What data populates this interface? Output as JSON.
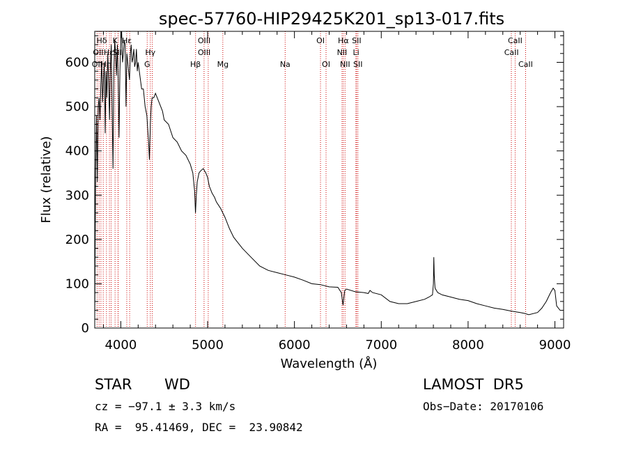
{
  "chart_data": {
    "type": "line",
    "title": "spec-57760-HIP29425K201_sp13-017.fits",
    "xlabel": "Wavelength (Å)",
    "ylabel": "Flux (relative)",
    "xlim": [
      3700,
      9100
    ],
    "ylim": [
      0,
      670
    ],
    "xticks": [
      4000,
      5000,
      6000,
      7000,
      8000,
      9000
    ],
    "yticks": [
      0,
      100,
      200,
      300,
      400,
      500,
      600
    ],
    "grid": false,
    "line_color": "#000000",
    "marker_color": "#cc0000",
    "series": [
      {
        "x": [
          3700,
          3710,
          3720,
          3730,
          3740,
          3750,
          3760,
          3770,
          3780,
          3790,
          3800,
          3810,
          3820,
          3830,
          3840,
          3850,
          3860,
          3870,
          3880,
          3890,
          3900,
          3910,
          3920,
          3930,
          3940,
          3950,
          3960,
          3970,
          3980,
          3990,
          4000,
          4010,
          4020,
          4030,
          4040,
          4050,
          4060,
          4070,
          4080,
          4090,
          4100,
          4110,
          4120,
          4130,
          4140,
          4150,
          4160,
          4170,
          4180,
          4190,
          4200,
          4220,
          4240,
          4260,
          4280,
          4300,
          4320,
          4330,
          4340,
          4350,
          4360,
          4380,
          4400,
          4420,
          4440,
          4460,
          4480,
          4500,
          4550,
          4600,
          4650,
          4700,
          4750,
          4800,
          4830,
          4850,
          4860,
          4870,
          4880,
          4900,
          4920,
          4950,
          4980,
          5000,
          5020,
          5050,
          5080,
          5100,
          5150,
          5200,
          5250,
          5300,
          5400,
          5500,
          5600,
          5700,
          5800,
          5900,
          6000,
          6100,
          6200,
          6300,
          6400,
          6500,
          6540,
          6560,
          6570,
          6580,
          6600,
          6700,
          6800,
          6850,
          6870,
          6900,
          7000,
          7100,
          7200,
          7300,
          7400,
          7500,
          7550,
          7590,
          7600,
          7605,
          7610,
          7620,
          7650,
          7700,
          7800,
          7900,
          8000,
          8100,
          8200,
          8300,
          8400,
          8500,
          8600,
          8650,
          8700,
          8800,
          8850,
          8900,
          8950,
          8980,
          9000,
          9020,
          9040,
          9060
        ],
        "y": [
          15,
          350,
          480,
          330,
          500,
          520,
          470,
          550,
          600,
          510,
          560,
          600,
          440,
          580,
          520,
          620,
          560,
          470,
          590,
          640,
          500,
          360,
          580,
          650,
          620,
          570,
          640,
          560,
          430,
          580,
          650,
          670,
          600,
          620,
          650,
          640,
          500,
          620,
          600,
          580,
          560,
          620,
          640,
          600,
          610,
          630,
          590,
          600,
          630,
          580,
          600,
          570,
          540,
          540,
          500,
          480,
          420,
          380,
          460,
          500,
          520,
          520,
          530,
          520,
          510,
          500,
          490,
          470,
          460,
          430,
          420,
          400,
          390,
          370,
          350,
          310,
          260,
          300,
          330,
          350,
          355,
          360,
          350,
          340,
          320,
          305,
          295,
          285,
          270,
          250,
          225,
          205,
          180,
          160,
          140,
          130,
          125,
          120,
          115,
          108,
          100,
          98,
          93,
          92,
          80,
          52,
          70,
          85,
          88,
          82,
          80,
          78,
          85,
          80,
          75,
          60,
          55,
          55,
          60,
          65,
          70,
          75,
          100,
          160,
          120,
          90,
          80,
          75,
          70,
          65,
          62,
          55,
          50,
          45,
          42,
          38,
          35,
          33,
          30,
          35,
          45,
          60,
          80,
          90,
          85,
          50,
          45,
          40
        ]
      }
    ],
    "line_markers": [
      {
        "wl": 3727,
        "labels": [
          "OII"
        ]
      },
      {
        "wl": 3750,
        "labels": [
          "Hθ"
        ]
      },
      {
        "wl": 3771,
        "labels": [
          "Hη"
        ]
      },
      {
        "wl": 3798,
        "labels": [
          "Hθ"
        ]
      },
      {
        "wl": 3835,
        "labels": [
          "Hη"
        ]
      },
      {
        "wl": 3869,
        "labels": [
          "NeIII"
        ]
      },
      {
        "wl": 3889,
        "labels": [
          "Hε"
        ]
      },
      {
        "wl": 3934,
        "labels": [
          "K"
        ]
      },
      {
        "wl": 3968,
        "labels": [
          "H"
        ]
      },
      {
        "wl": 3970,
        "labels": [
          "Hε"
        ]
      },
      {
        "wl": 4069,
        "labels": [
          "SII"
        ]
      },
      {
        "wl": 4102,
        "labels": [
          "Hδ"
        ]
      },
      {
        "wl": 4304,
        "labels": [
          "G"
        ]
      },
      {
        "wl": 4340,
        "labels": [
          "Hγ"
        ]
      },
      {
        "wl": 4363,
        "labels": [
          "OIII"
        ]
      },
      {
        "wl": 4861,
        "labels": [
          "Hβ"
        ]
      },
      {
        "wl": 4959,
        "labels": [
          "OIII"
        ]
      },
      {
        "wl": 5007,
        "labels": [
          "OIII"
        ]
      },
      {
        "wl": 5175,
        "labels": [
          "Mg"
        ]
      },
      {
        "wl": 5893,
        "labels": [
          "Na"
        ]
      },
      {
        "wl": 6300,
        "labels": [
          "OI"
        ]
      },
      {
        "wl": 6364,
        "labels": [
          "OI"
        ]
      },
      {
        "wl": 6548,
        "labels": [
          "NII"
        ]
      },
      {
        "wl": 6563,
        "labels": [
          "Hα"
        ]
      },
      {
        "wl": 6583,
        "labels": [
          "NII"
        ]
      },
      {
        "wl": 6708,
        "labels": [
          "Li"
        ]
      },
      {
        "wl": 6716,
        "labels": [
          "SII"
        ]
      },
      {
        "wl": 6731,
        "labels": [
          "SII"
        ]
      },
      {
        "wl": 8498,
        "labels": [
          "CaII"
        ]
      },
      {
        "wl": 8542,
        "labels": [
          "CaII"
        ]
      },
      {
        "wl": 8662,
        "labels": [
          "CaII"
        ]
      }
    ],
    "marker_label_rows": {
      "row1": [
        "Hδ",
        "K",
        "Hε",
        "OIII",
        "OI",
        "Hα",
        "SII",
        "CaII"
      ],
      "row2": [
        "OII",
        "Hε",
        "SII",
        "Hγ",
        "OIII",
        "NII",
        "Li",
        "CaII"
      ],
      "row3": [
        "OII",
        "Hη",
        "G",
        "Hβ",
        "Mg",
        "Na",
        "OI",
        "NII",
        "SII",
        "CaII"
      ]
    }
  },
  "info": {
    "object_type": "STAR",
    "subclass": "WD",
    "survey": "LAMOST  DR5",
    "cz": "cz = −97.1 ± 3.3 km/s",
    "obs_date": "Obs−Date: 20170106",
    "coords": "RA =  95.41469, DEC =  23.90842"
  }
}
